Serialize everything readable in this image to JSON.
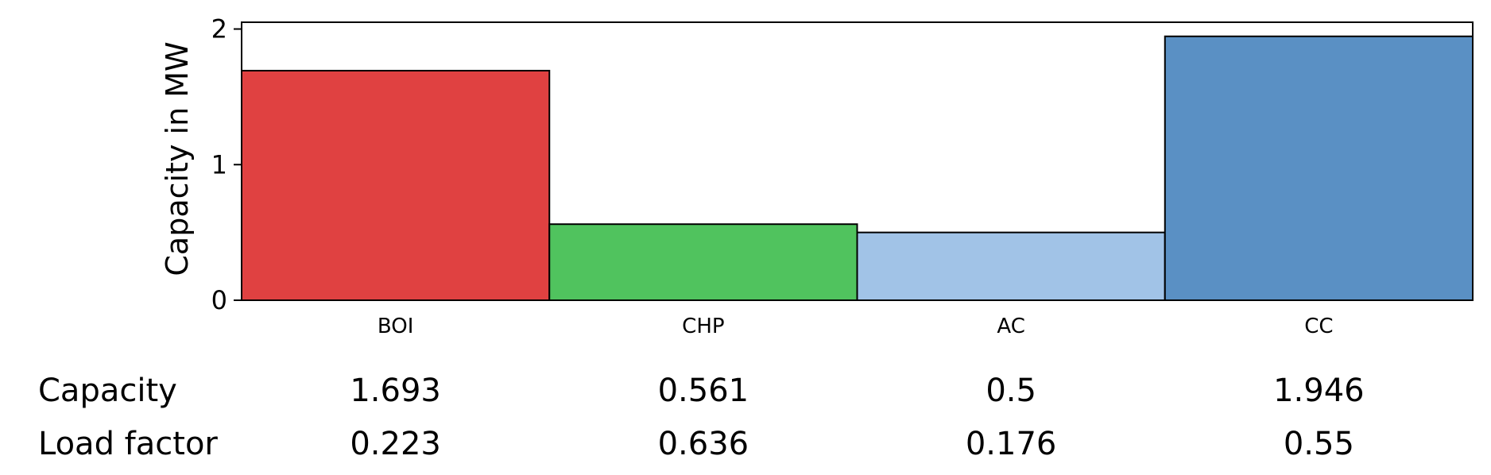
{
  "chart_data": {
    "type": "bar",
    "categories": [
      "BOI",
      "CHP",
      "AC",
      "CC"
    ],
    "values": [
      1.693,
      0.561,
      0.5,
      1.946
    ],
    "colors": [
      "#e04141",
      "#50c35e",
      "#a1c3e7",
      "#5a90c4"
    ],
    "title": "",
    "xlabel": "",
    "ylabel": "Capacity in MW",
    "ylim": [
      0,
      2.05
    ],
    "yticks": [
      0,
      1,
      2
    ],
    "ytick_labels": [
      "0",
      "1",
      "2"
    ],
    "grid": false,
    "table": {
      "rows": [
        {
          "label": "Capacity",
          "values": [
            "1.693",
            "0.561",
            "0.5",
            "1.946"
          ]
        },
        {
          "label": "Load factor",
          "values": [
            "0.223",
            "0.636",
            "0.176",
            "0.55"
          ]
        }
      ]
    }
  }
}
